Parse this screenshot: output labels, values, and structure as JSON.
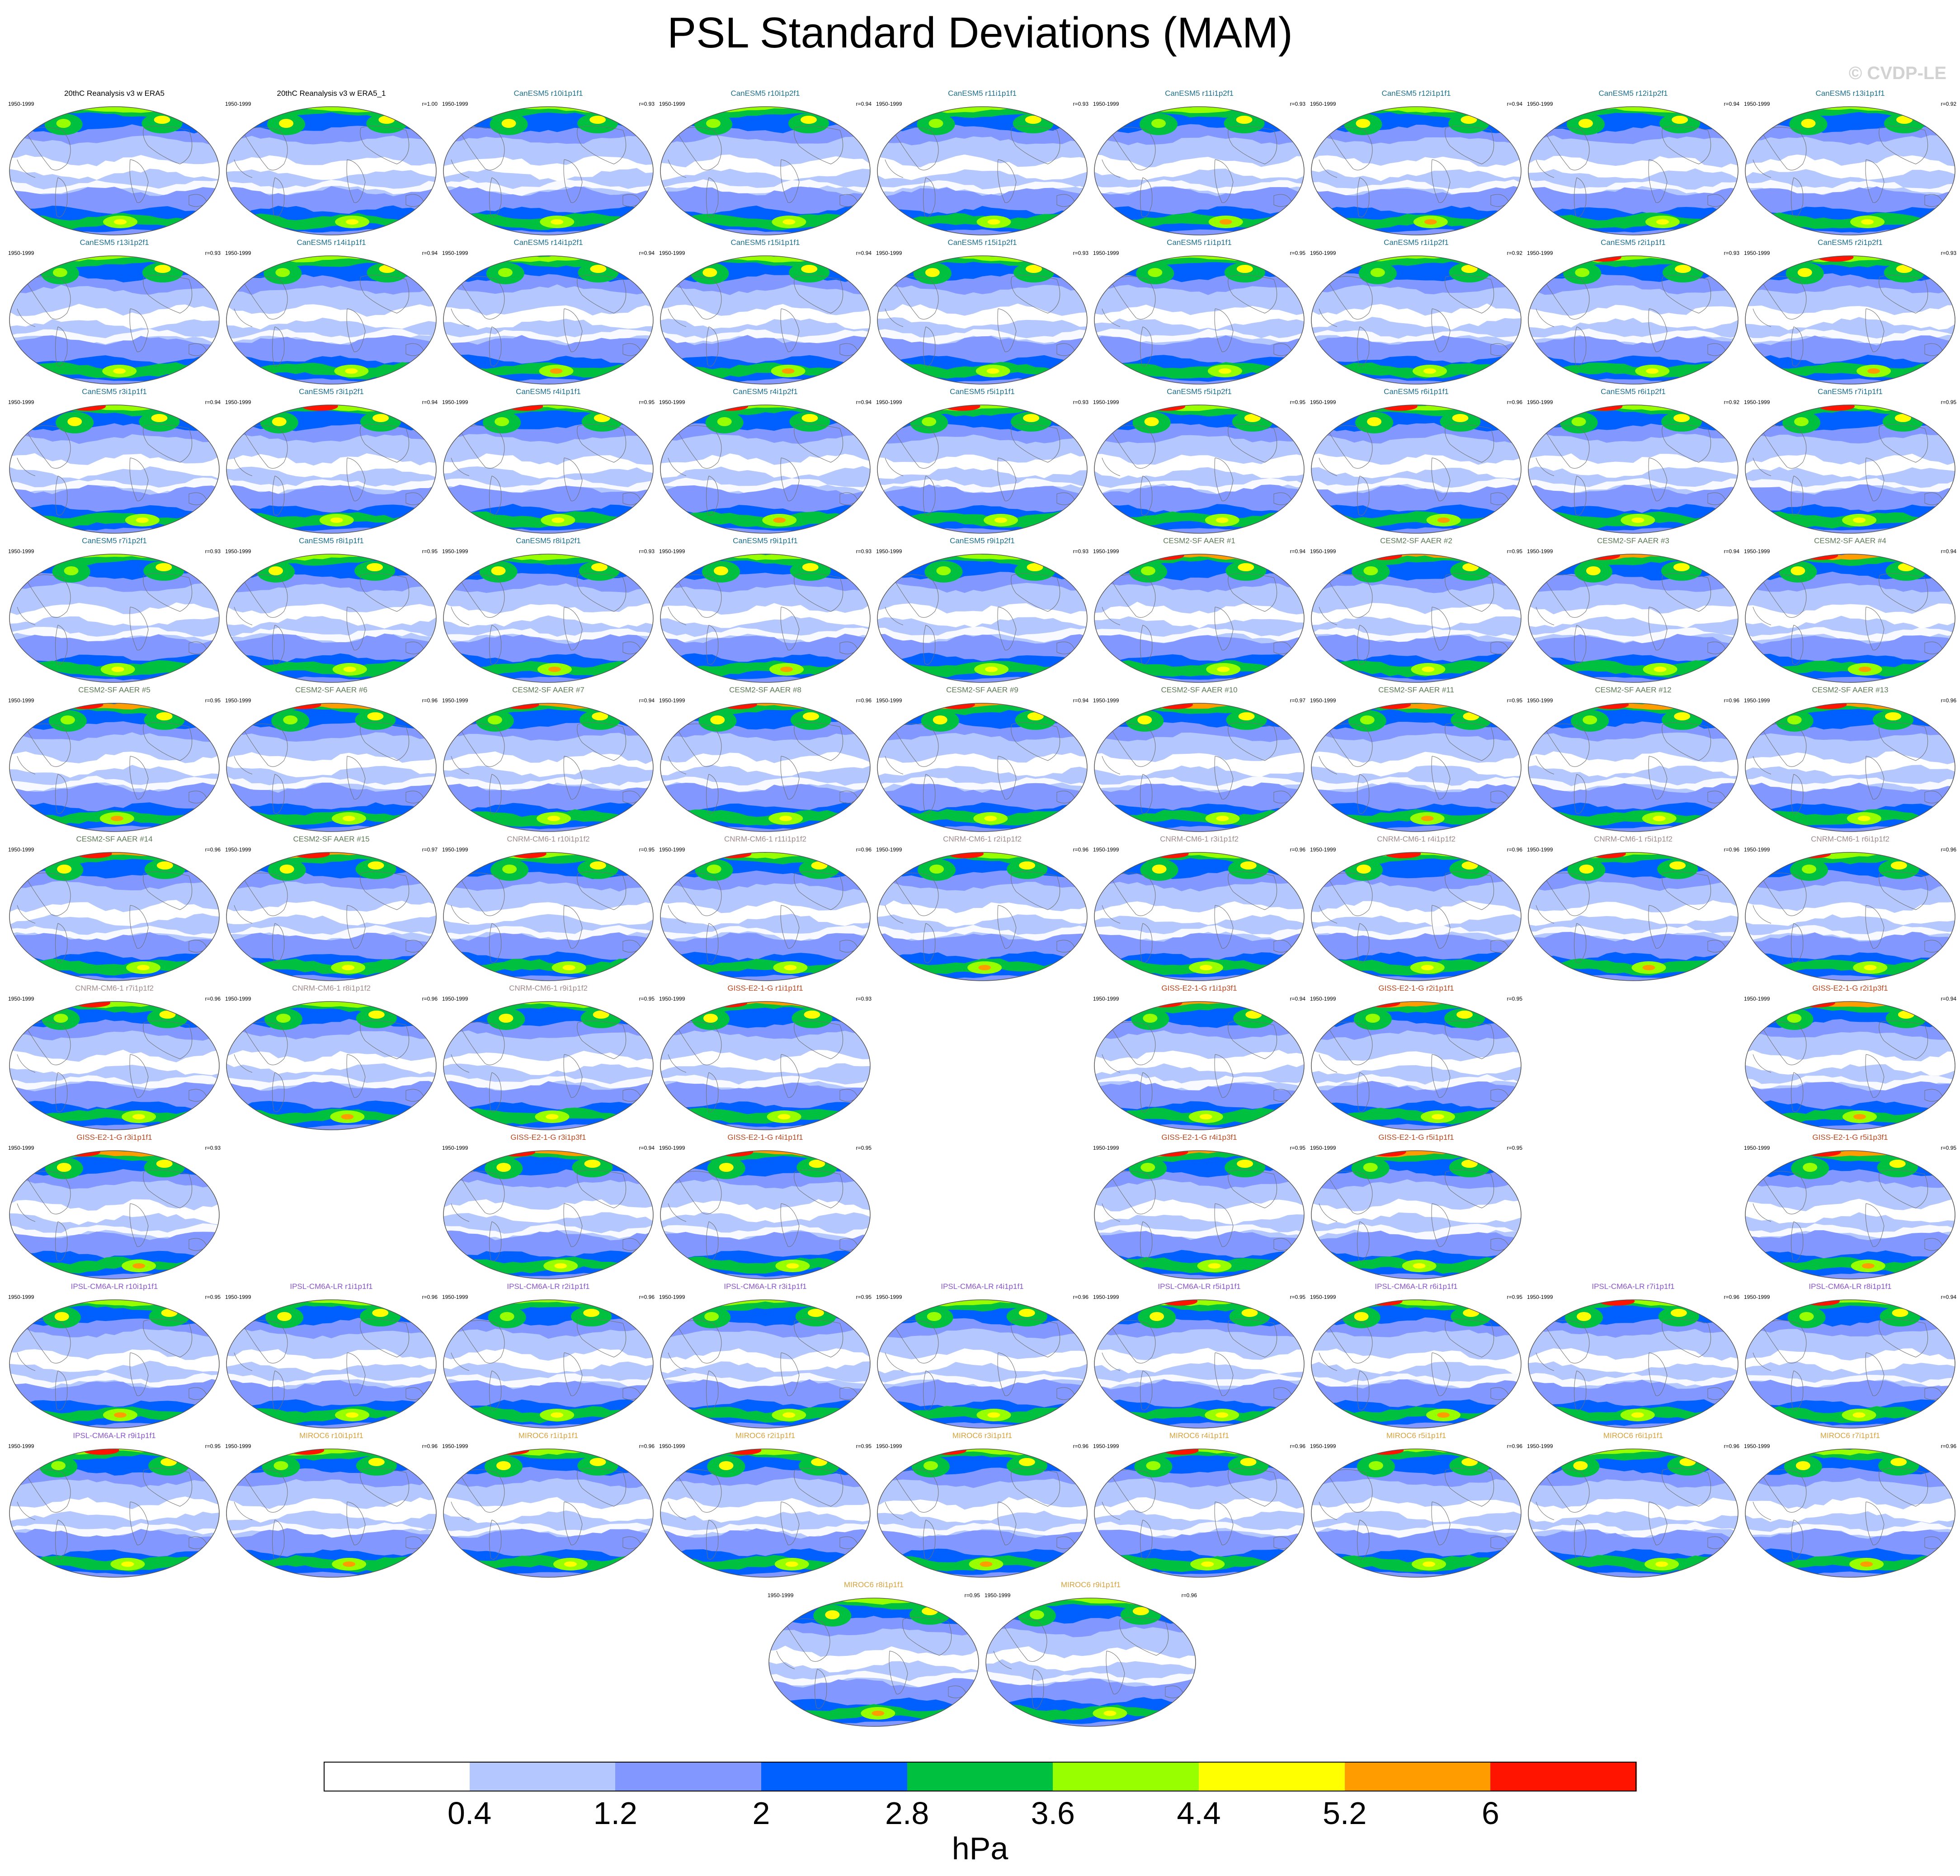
{
  "title": "PSL Standard Deviations (MAM)",
  "watermark": "© CVDP-LE",
  "colors": {
    "levels": [
      "#ffffff",
      "#b4c8ff",
      "#8297ff",
      "#0060ff",
      "#00c040",
      "#97ff00",
      "#ffff00",
      "#ff9d00",
      "#ff1400"
    ],
    "map_outline": "#555555",
    "coast": "#707070",
    "model_title_colors": {
      "obs": "#000000",
      "CanESM5": "#1d6f8c",
      "CESM2-SF AAER": "#5b7a55",
      "CNRM-CM6-1": "#a08a8a",
      "GISS-E2-1-G": "#b8471f",
      "IPSL-CM6A-LR": "#8a55c8",
      "MIROC6": "#d6a23c"
    }
  },
  "chart_data": {
    "type": "heatmap",
    "projection": "global map panels",
    "period": "1950-1999",
    "colorbar": {
      "ticks": [
        "0.4",
        "1.2",
        "2",
        "2.8",
        "3.6",
        "4.4",
        "5.2",
        "6"
      ],
      "units": "hPa",
      "levels": 9
    },
    "panels": [
      {
        "title": "20thC Reanalysis v3 w ERA5",
        "years": "1950-1999",
        "r": "",
        "model": "obs",
        "row": 0,
        "col": 0
      },
      {
        "title": "20thC Reanalysis v3 w ERA5_1",
        "years": "1950-1999",
        "r": "r=1.00",
        "model": "obs",
        "row": 0,
        "col": 1
      },
      {
        "title": "CanESM5 r10i1p1f1",
        "years": "1950-1999",
        "r": "r=0.93",
        "model": "CanESM5",
        "row": 0,
        "col": 2
      },
      {
        "title": "CanESM5 r10i1p2f1",
        "years": "1950-1999",
        "r": "r=0.94",
        "model": "CanESM5",
        "row": 0,
        "col": 3
      },
      {
        "title": "CanESM5 r11i1p1f1",
        "years": "1950-1999",
        "r": "r=0.93",
        "model": "CanESM5",
        "row": 0,
        "col": 4
      },
      {
        "title": "CanESM5 r11i1p2f1",
        "years": "1950-1999",
        "r": "r=0.93",
        "model": "CanESM5",
        "row": 0,
        "col": 5
      },
      {
        "title": "CanESM5 r12i1p1f1",
        "years": "1950-1999",
        "r": "r=0.94",
        "model": "CanESM5",
        "row": 0,
        "col": 6
      },
      {
        "title": "CanESM5 r12i1p2f1",
        "years": "1950-1999",
        "r": "r=0.94",
        "model": "CanESM5",
        "row": 0,
        "col": 7
      },
      {
        "title": "CanESM5 r13i1p1f1",
        "years": "1950-1999",
        "r": "r=0.92",
        "model": "CanESM5",
        "row": 0,
        "col": 8
      },
      {
        "title": "CanESM5 r13i1p2f1",
        "years": "1950-1999",
        "r": "r=0.93",
        "model": "CanESM5",
        "row": 1,
        "col": 0
      },
      {
        "title": "CanESM5 r14i1p1f1",
        "years": "1950-1999",
        "r": "r=0.94",
        "model": "CanESM5",
        "row": 1,
        "col": 1
      },
      {
        "title": "CanESM5 r14i1p2f1",
        "years": "1950-1999",
        "r": "r=0.94",
        "model": "CanESM5",
        "row": 1,
        "col": 2
      },
      {
        "title": "CanESM5 r15i1p1f1",
        "years": "1950-1999",
        "r": "r=0.94",
        "model": "CanESM5",
        "row": 1,
        "col": 3
      },
      {
        "title": "CanESM5 r15i1p2f1",
        "years": "1950-1999",
        "r": "r=0.93",
        "model": "CanESM5",
        "row": 1,
        "col": 4
      },
      {
        "title": "CanESM5 r1i1p1f1",
        "years": "1950-1999",
        "r": "r=0.95",
        "model": "CanESM5",
        "row": 1,
        "col": 5
      },
      {
        "title": "CanESM5 r1i1p2f1",
        "years": "1950-1999",
        "r": "r=0.92",
        "model": "CanESM5",
        "row": 1,
        "col": 6
      },
      {
        "title": "CanESM5 r2i1p1f1",
        "years": "1950-1999",
        "r": "r=0.93",
        "model": "CanESM5",
        "row": 1,
        "col": 7
      },
      {
        "title": "CanESM5 r2i1p2f1",
        "years": "1950-1999",
        "r": "r=0.93",
        "model": "CanESM5",
        "row": 1,
        "col": 8
      },
      {
        "title": "CanESM5 r3i1p1f1",
        "years": "1950-1999",
        "r": "r=0.94",
        "model": "CanESM5",
        "row": 2,
        "col": 0
      },
      {
        "title": "CanESM5 r3i1p2f1",
        "years": "1950-1999",
        "r": "r=0.94",
        "model": "CanESM5",
        "row": 2,
        "col": 1
      },
      {
        "title": "CanESM5 r4i1p1f1",
        "years": "1950-1999",
        "r": "r=0.95",
        "model": "CanESM5",
        "row": 2,
        "col": 2
      },
      {
        "title": "CanESM5 r4i1p2f1",
        "years": "1950-1999",
        "r": "r=0.94",
        "model": "CanESM5",
        "row": 2,
        "col": 3
      },
      {
        "title": "CanESM5 r5i1p1f1",
        "years": "1950-1999",
        "r": "r=0.93",
        "model": "CanESM5",
        "row": 2,
        "col": 4
      },
      {
        "title": "CanESM5 r5i1p2f1",
        "years": "1950-1999",
        "r": "r=0.95",
        "model": "CanESM5",
        "row": 2,
        "col": 5
      },
      {
        "title": "CanESM5 r6i1p1f1",
        "years": "1950-1999",
        "r": "r=0.96",
        "model": "CanESM5",
        "row": 2,
        "col": 6
      },
      {
        "title": "CanESM5 r6i1p2f1",
        "years": "1950-1999",
        "r": "r=0.92",
        "model": "CanESM5",
        "row": 2,
        "col": 7
      },
      {
        "title": "CanESM5 r7i1p1f1",
        "years": "1950-1999",
        "r": "r=0.95",
        "model": "CanESM5",
        "row": 2,
        "col": 8
      },
      {
        "title": "CanESM5 r7i1p2f1",
        "years": "1950-1999",
        "r": "r=0.93",
        "model": "CanESM5",
        "row": 3,
        "col": 0
      },
      {
        "title": "CanESM5 r8i1p1f1",
        "years": "1950-1999",
        "r": "r=0.95",
        "model": "CanESM5",
        "row": 3,
        "col": 1
      },
      {
        "title": "CanESM5 r8i1p2f1",
        "years": "1950-1999",
        "r": "r=0.93",
        "model": "CanESM5",
        "row": 3,
        "col": 2
      },
      {
        "title": "CanESM5 r9i1p1f1",
        "years": "1950-1999",
        "r": "r=0.93",
        "model": "CanESM5",
        "row": 3,
        "col": 3
      },
      {
        "title": "CanESM5 r9i1p2f1",
        "years": "1950-1999",
        "r": "r=0.93",
        "model": "CanESM5",
        "row": 3,
        "col": 4
      },
      {
        "title": "CESM2-SF AAER #1",
        "years": "1950-1999",
        "r": "r=0.94",
        "model": "CESM2-SF AAER",
        "row": 3,
        "col": 5
      },
      {
        "title": "CESM2-SF AAER #2",
        "years": "1950-1999",
        "r": "r=0.95",
        "model": "CESM2-SF AAER",
        "row": 3,
        "col": 6
      },
      {
        "title": "CESM2-SF AAER #3",
        "years": "1950-1999",
        "r": "r=0.94",
        "model": "CESM2-SF AAER",
        "row": 3,
        "col": 7
      },
      {
        "title": "CESM2-SF AAER #4",
        "years": "1950-1999",
        "r": "r=0.94",
        "model": "CESM2-SF AAER",
        "row": 3,
        "col": 8
      },
      {
        "title": "CESM2-SF AAER #5",
        "years": "1950-1999",
        "r": "r=0.95",
        "model": "CESM2-SF AAER",
        "row": 4,
        "col": 0
      },
      {
        "title": "CESM2-SF AAER #6",
        "years": "1950-1999",
        "r": "r=0.96",
        "model": "CESM2-SF AAER",
        "row": 4,
        "col": 1
      },
      {
        "title": "CESM2-SF AAER #7",
        "years": "1950-1999",
        "r": "r=0.94",
        "model": "CESM2-SF AAER",
        "row": 4,
        "col": 2
      },
      {
        "title": "CESM2-SF AAER #8",
        "years": "1950-1999",
        "r": "r=0.96",
        "model": "CESM2-SF AAER",
        "row": 4,
        "col": 3
      },
      {
        "title": "CESM2-SF AAER #9",
        "years": "1950-1999",
        "r": "r=0.94",
        "model": "CESM2-SF AAER",
        "row": 4,
        "col": 4
      },
      {
        "title": "CESM2-SF AAER #10",
        "years": "1950-1999",
        "r": "r=0.97",
        "model": "CESM2-SF AAER",
        "row": 4,
        "col": 5
      },
      {
        "title": "CESM2-SF AAER #11",
        "years": "1950-1999",
        "r": "r=0.95",
        "model": "CESM2-SF AAER",
        "row": 4,
        "col": 6
      },
      {
        "title": "CESM2-SF AAER #12",
        "years": "1950-1999",
        "r": "r=0.96",
        "model": "CESM2-SF AAER",
        "row": 4,
        "col": 7
      },
      {
        "title": "CESM2-SF AAER #13",
        "years": "1950-1999",
        "r": "r=0.96",
        "model": "CESM2-SF AAER",
        "row": 4,
        "col": 8
      },
      {
        "title": "CESM2-SF AAER #14",
        "years": "1950-1999",
        "r": "r=0.96",
        "model": "CESM2-SF AAER",
        "row": 5,
        "col": 0
      },
      {
        "title": "CESM2-SF AAER #15",
        "years": "1950-1999",
        "r": "r=0.97",
        "model": "CESM2-SF AAER",
        "row": 5,
        "col": 1
      },
      {
        "title": "CNRM-CM6-1 r10i1p1f2",
        "years": "1950-1999",
        "r": "r=0.95",
        "model": "CNRM-CM6-1",
        "row": 5,
        "col": 2
      },
      {
        "title": "CNRM-CM6-1 r11i1p1f2",
        "years": "1950-1999",
        "r": "r=0.96",
        "model": "CNRM-CM6-1",
        "row": 5,
        "col": 3
      },
      {
        "title": "CNRM-CM6-1 r2i1p1f2",
        "years": "1950-1999",
        "r": "r=0.96",
        "model": "CNRM-CM6-1",
        "row": 5,
        "col": 4
      },
      {
        "title": "CNRM-CM6-1 r3i1p1f2",
        "years": "1950-1999",
        "r": "r=0.96",
        "model": "CNRM-CM6-1",
        "row": 5,
        "col": 5
      },
      {
        "title": "CNRM-CM6-1 r4i1p1f2",
        "years": "1950-1999",
        "r": "r=0.96",
        "model": "CNRM-CM6-1",
        "row": 5,
        "col": 6
      },
      {
        "title": "CNRM-CM6-1 r5i1p1f2",
        "years": "1950-1999",
        "r": "r=0.96",
        "model": "CNRM-CM6-1",
        "row": 5,
        "col": 7
      },
      {
        "title": "CNRM-CM6-1 r6i1p1f2",
        "years": "1950-1999",
        "r": "r=0.96",
        "model": "CNRM-CM6-1",
        "row": 5,
        "col": 8
      },
      {
        "title": "CNRM-CM6-1 r7i1p1f2",
        "years": "1950-1999",
        "r": "r=0.96",
        "model": "CNRM-CM6-1",
        "row": 6,
        "col": 0
      },
      {
        "title": "CNRM-CM6-1 r8i1p1f2",
        "years": "1950-1999",
        "r": "r=0.96",
        "model": "CNRM-CM6-1",
        "row": 6,
        "col": 1
      },
      {
        "title": "CNRM-CM6-1 r9i1p1f2",
        "years": "1950-1999",
        "r": "r=0.95",
        "model": "CNRM-CM6-1",
        "row": 6,
        "col": 2
      },
      {
        "title": "GISS-E2-1-G r1i1p1f1",
        "years": "1950-1999",
        "r": "r=0.93",
        "model": "GISS-E2-1-G",
        "row": 6,
        "col": 3
      },
      {
        "title": "GISS-E2-1-G r1i1p3f1",
        "years": "1950-1999",
        "r": "r=0.94",
        "model": "GISS-E2-1-G",
        "row": 6,
        "col": 5
      },
      {
        "title": "GISS-E2-1-G r2i1p1f1",
        "years": "1950-1999",
        "r": "r=0.95",
        "model": "GISS-E2-1-G",
        "row": 6,
        "col": 6
      },
      {
        "title": "GISS-E2-1-G r2i1p3f1",
        "years": "1950-1999",
        "r": "r=0.94",
        "model": "GISS-E2-1-G",
        "row": 6,
        "col": 8
      },
      {
        "title": "GISS-E2-1-G r3i1p1f1",
        "years": "1950-1999",
        "r": "r=0.93",
        "model": "GISS-E2-1-G",
        "row": 7,
        "col": 0
      },
      {
        "title": "GISS-E2-1-G r3i1p3f1",
        "years": "1950-1999",
        "r": "r=0.94",
        "model": "GISS-E2-1-G",
        "row": 7,
        "col": 2
      },
      {
        "title": "GISS-E2-1-G r4i1p1f1",
        "years": "1950-1999",
        "r": "r=0.95",
        "model": "GISS-E2-1-G",
        "row": 7,
        "col": 3
      },
      {
        "title": "GISS-E2-1-G r4i1p3f1",
        "years": "1950-1999",
        "r": "r=0.95",
        "model": "GISS-E2-1-G",
        "row": 7,
        "col": 5
      },
      {
        "title": "GISS-E2-1-G r5i1p1f1",
        "years": "1950-1999",
        "r": "r=0.95",
        "model": "GISS-E2-1-G",
        "row": 7,
        "col": 6
      },
      {
        "title": "GISS-E2-1-G r5i1p3f1",
        "years": "1950-1999",
        "r": "r=0.95",
        "model": "GISS-E2-1-G",
        "row": 7,
        "col": 8
      },
      {
        "title": "IPSL-CM6A-LR r10i1p1f1",
        "years": "1950-1999",
        "r": "r=0.95",
        "model": "IPSL-CM6A-LR",
        "row": 8,
        "col": 0
      },
      {
        "title": "IPSL-CM6A-LR r1i1p1f1",
        "years": "1950-1999",
        "r": "r=0.96",
        "model": "IPSL-CM6A-LR",
        "row": 8,
        "col": 1
      },
      {
        "title": "IPSL-CM6A-LR r2i1p1f1",
        "years": "1950-1999",
        "r": "r=0.96",
        "model": "IPSL-CM6A-LR",
        "row": 8,
        "col": 2
      },
      {
        "title": "IPSL-CM6A-LR r3i1p1f1",
        "years": "1950-1999",
        "r": "r=0.95",
        "model": "IPSL-CM6A-LR",
        "row": 8,
        "col": 3
      },
      {
        "title": "IPSL-CM6A-LR r4i1p1f1",
        "years": "1950-1999",
        "r": "r=0.96",
        "model": "IPSL-CM6A-LR",
        "row": 8,
        "col": 4
      },
      {
        "title": "IPSL-CM6A-LR r5i1p1f1",
        "years": "1950-1999",
        "r": "r=0.95",
        "model": "IPSL-CM6A-LR",
        "row": 8,
        "col": 5
      },
      {
        "title": "IPSL-CM6A-LR r6i1p1f1",
        "years": "1950-1999",
        "r": "r=0.95",
        "model": "IPSL-CM6A-LR",
        "row": 8,
        "col": 6
      },
      {
        "title": "IPSL-CM6A-LR r7i1p1f1",
        "years": "1950-1999",
        "r": "r=0.96",
        "model": "IPSL-CM6A-LR",
        "row": 8,
        "col": 7
      },
      {
        "title": "IPSL-CM6A-LR r8i1p1f1",
        "years": "1950-1999",
        "r": "r=0.94",
        "model": "IPSL-CM6A-LR",
        "row": 8,
        "col": 8
      },
      {
        "title": "IPSL-CM6A-LR r9i1p1f1",
        "years": "1950-1999",
        "r": "r=0.95",
        "model": "IPSL-CM6A-LR",
        "row": 9,
        "col": 0
      },
      {
        "title": "MIROC6 r10i1p1f1",
        "years": "1950-1999",
        "r": "r=0.96",
        "model": "MIROC6",
        "row": 9,
        "col": 1
      },
      {
        "title": "MIROC6 r1i1p1f1",
        "years": "1950-1999",
        "r": "r=0.96",
        "model": "MIROC6",
        "row": 9,
        "col": 2
      },
      {
        "title": "MIROC6 r2i1p1f1",
        "years": "1950-1999",
        "r": "r=0.95",
        "model": "MIROC6",
        "row": 9,
        "col": 3
      },
      {
        "title": "MIROC6 r3i1p1f1",
        "years": "1950-1999",
        "r": "r=0.96",
        "model": "MIROC6",
        "row": 9,
        "col": 4
      },
      {
        "title": "MIROC6 r4i1p1f1",
        "years": "1950-1999",
        "r": "r=0.96",
        "model": "MIROC6",
        "row": 9,
        "col": 5
      },
      {
        "title": "MIROC6 r5i1p1f1",
        "years": "1950-1999",
        "r": "r=0.96",
        "model": "MIROC6",
        "row": 9,
        "col": 6
      },
      {
        "title": "MIROC6 r6i1p1f1",
        "years": "1950-1999",
        "r": "r=0.96",
        "model": "MIROC6",
        "row": 9,
        "col": 7
      },
      {
        "title": "MIROC6 r7i1p1f1",
        "years": "1950-1999",
        "r": "r=0.96",
        "model": "MIROC6",
        "row": 9,
        "col": 8
      },
      {
        "title": "MIROC6 r8i1p1f1",
        "years": "1950-1999",
        "r": "r=0.95",
        "model": "MIROC6",
        "row": 10,
        "col": 3.5
      },
      {
        "title": "MIROC6 r9i1p1f1",
        "years": "1950-1999",
        "r": "r=0.96",
        "model": "MIROC6",
        "row": 10,
        "col": 4.5
      }
    ]
  }
}
